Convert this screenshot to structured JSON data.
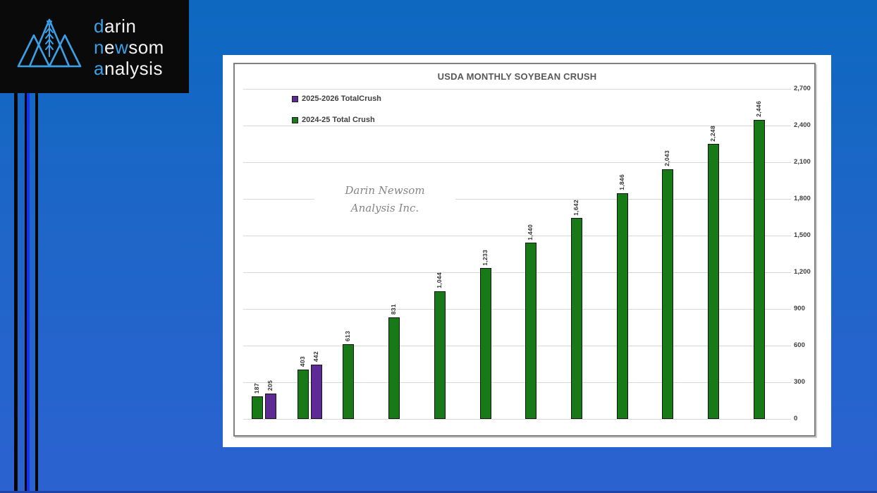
{
  "slide": {
    "background_top": "#0d68c0",
    "background_bottom": "#2b62d0",
    "bottom_edge_color": "#1e44a8",
    "stripes": [
      {
        "x": 20,
        "width": 4.5,
        "color": "#050505"
      },
      {
        "x": 35,
        "width": 2.5,
        "color": "#050505"
      },
      {
        "x": 37.5,
        "width": 4.5,
        "color": "#1433f0"
      },
      {
        "x": 50,
        "width": 4,
        "color": "#050505"
      }
    ]
  },
  "logo": {
    "icon": "mountains-wheat",
    "accent_color": "#3aa1e8",
    "text_color": "#f2f2f2",
    "brand_lines": [
      {
        "segments": [
          {
            "text": "d",
            "accent": true
          },
          {
            "text": "arin",
            "accent": false
          }
        ]
      },
      {
        "segments": [
          {
            "text": "n",
            "accent": true
          },
          {
            "text": "e",
            "accent": false
          },
          {
            "text": "w",
            "accent": true
          },
          {
            "text": "som",
            "accent": false
          }
        ]
      },
      {
        "segments": [
          {
            "text": "a",
            "accent": true
          },
          {
            "text": "nalysis",
            "accent": false
          }
        ]
      }
    ]
  },
  "watermark": {
    "line1": "Darin Newsom",
    "line2": "Analysis Inc."
  },
  "chart_data": {
    "type": "bar",
    "title": "USDA MONTHLY SOYBEAN CRUSH",
    "x_axis_labels": "none",
    "n_groups": 12,
    "grid": true,
    "legend_position": "top-left",
    "y_axis": {
      "side": "right",
      "min": 0,
      "max": 2700,
      "step": 300,
      "tick_labels": [
        "0",
        "300",
        "600",
        "900",
        "1,200",
        "1,500",
        "1,800",
        "2,100",
        "2,400",
        "2,700"
      ]
    },
    "series": [
      {
        "name": "2025-2026 TotalCrush",
        "color": "#5e2b96",
        "values": [
          205,
          442
        ],
        "value_labels": [
          "205",
          "442"
        ]
      },
      {
        "name": "2024-25 Total Crush",
        "color": "#177a17",
        "values": [
          187,
          403,
          613,
          831,
          1044,
          1233,
          1440,
          1642,
          1846,
          2043,
          2248,
          2446
        ],
        "value_labels": [
          "187",
          "403",
          "613",
          "831",
          "1,044",
          "1,233",
          "1,440",
          "1,642",
          "1,846",
          "2,043",
          "2,248",
          "2,446"
        ]
      }
    ],
    "colors": {
      "bar_outline": "#141414",
      "gridline": "#d9d9d9",
      "title": "#595959",
      "value_label": "#333333",
      "tick_label": "#404040",
      "frame_border": "#808080"
    }
  }
}
